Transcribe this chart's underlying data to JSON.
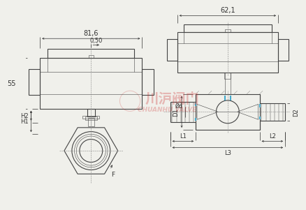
{
  "bg_color": "#f0f0eb",
  "line_color": "#444444",
  "dim_color": "#333333",
  "center_color": "#888888",
  "highlight_color": "#44aacc",
  "watermark_red": "#cc2222",
  "dim_81_6": "81,6",
  "dim_0_50": "0,50",
  "dim_62_1": "62,1",
  "dim_55": "55",
  "dim_H2": "H2",
  "dim_H1": "H1",
  "dim_D1": "D1",
  "dim_D2": "D2",
  "dim_Od": "Ød",
  "dim_L1": "L1",
  "dim_L2": "L2",
  "dim_L3": "L3",
  "dim_F": "F",
  "watermark_cn": "川沪阀门",
  "watermark_en": "CHUANHU VALVE"
}
